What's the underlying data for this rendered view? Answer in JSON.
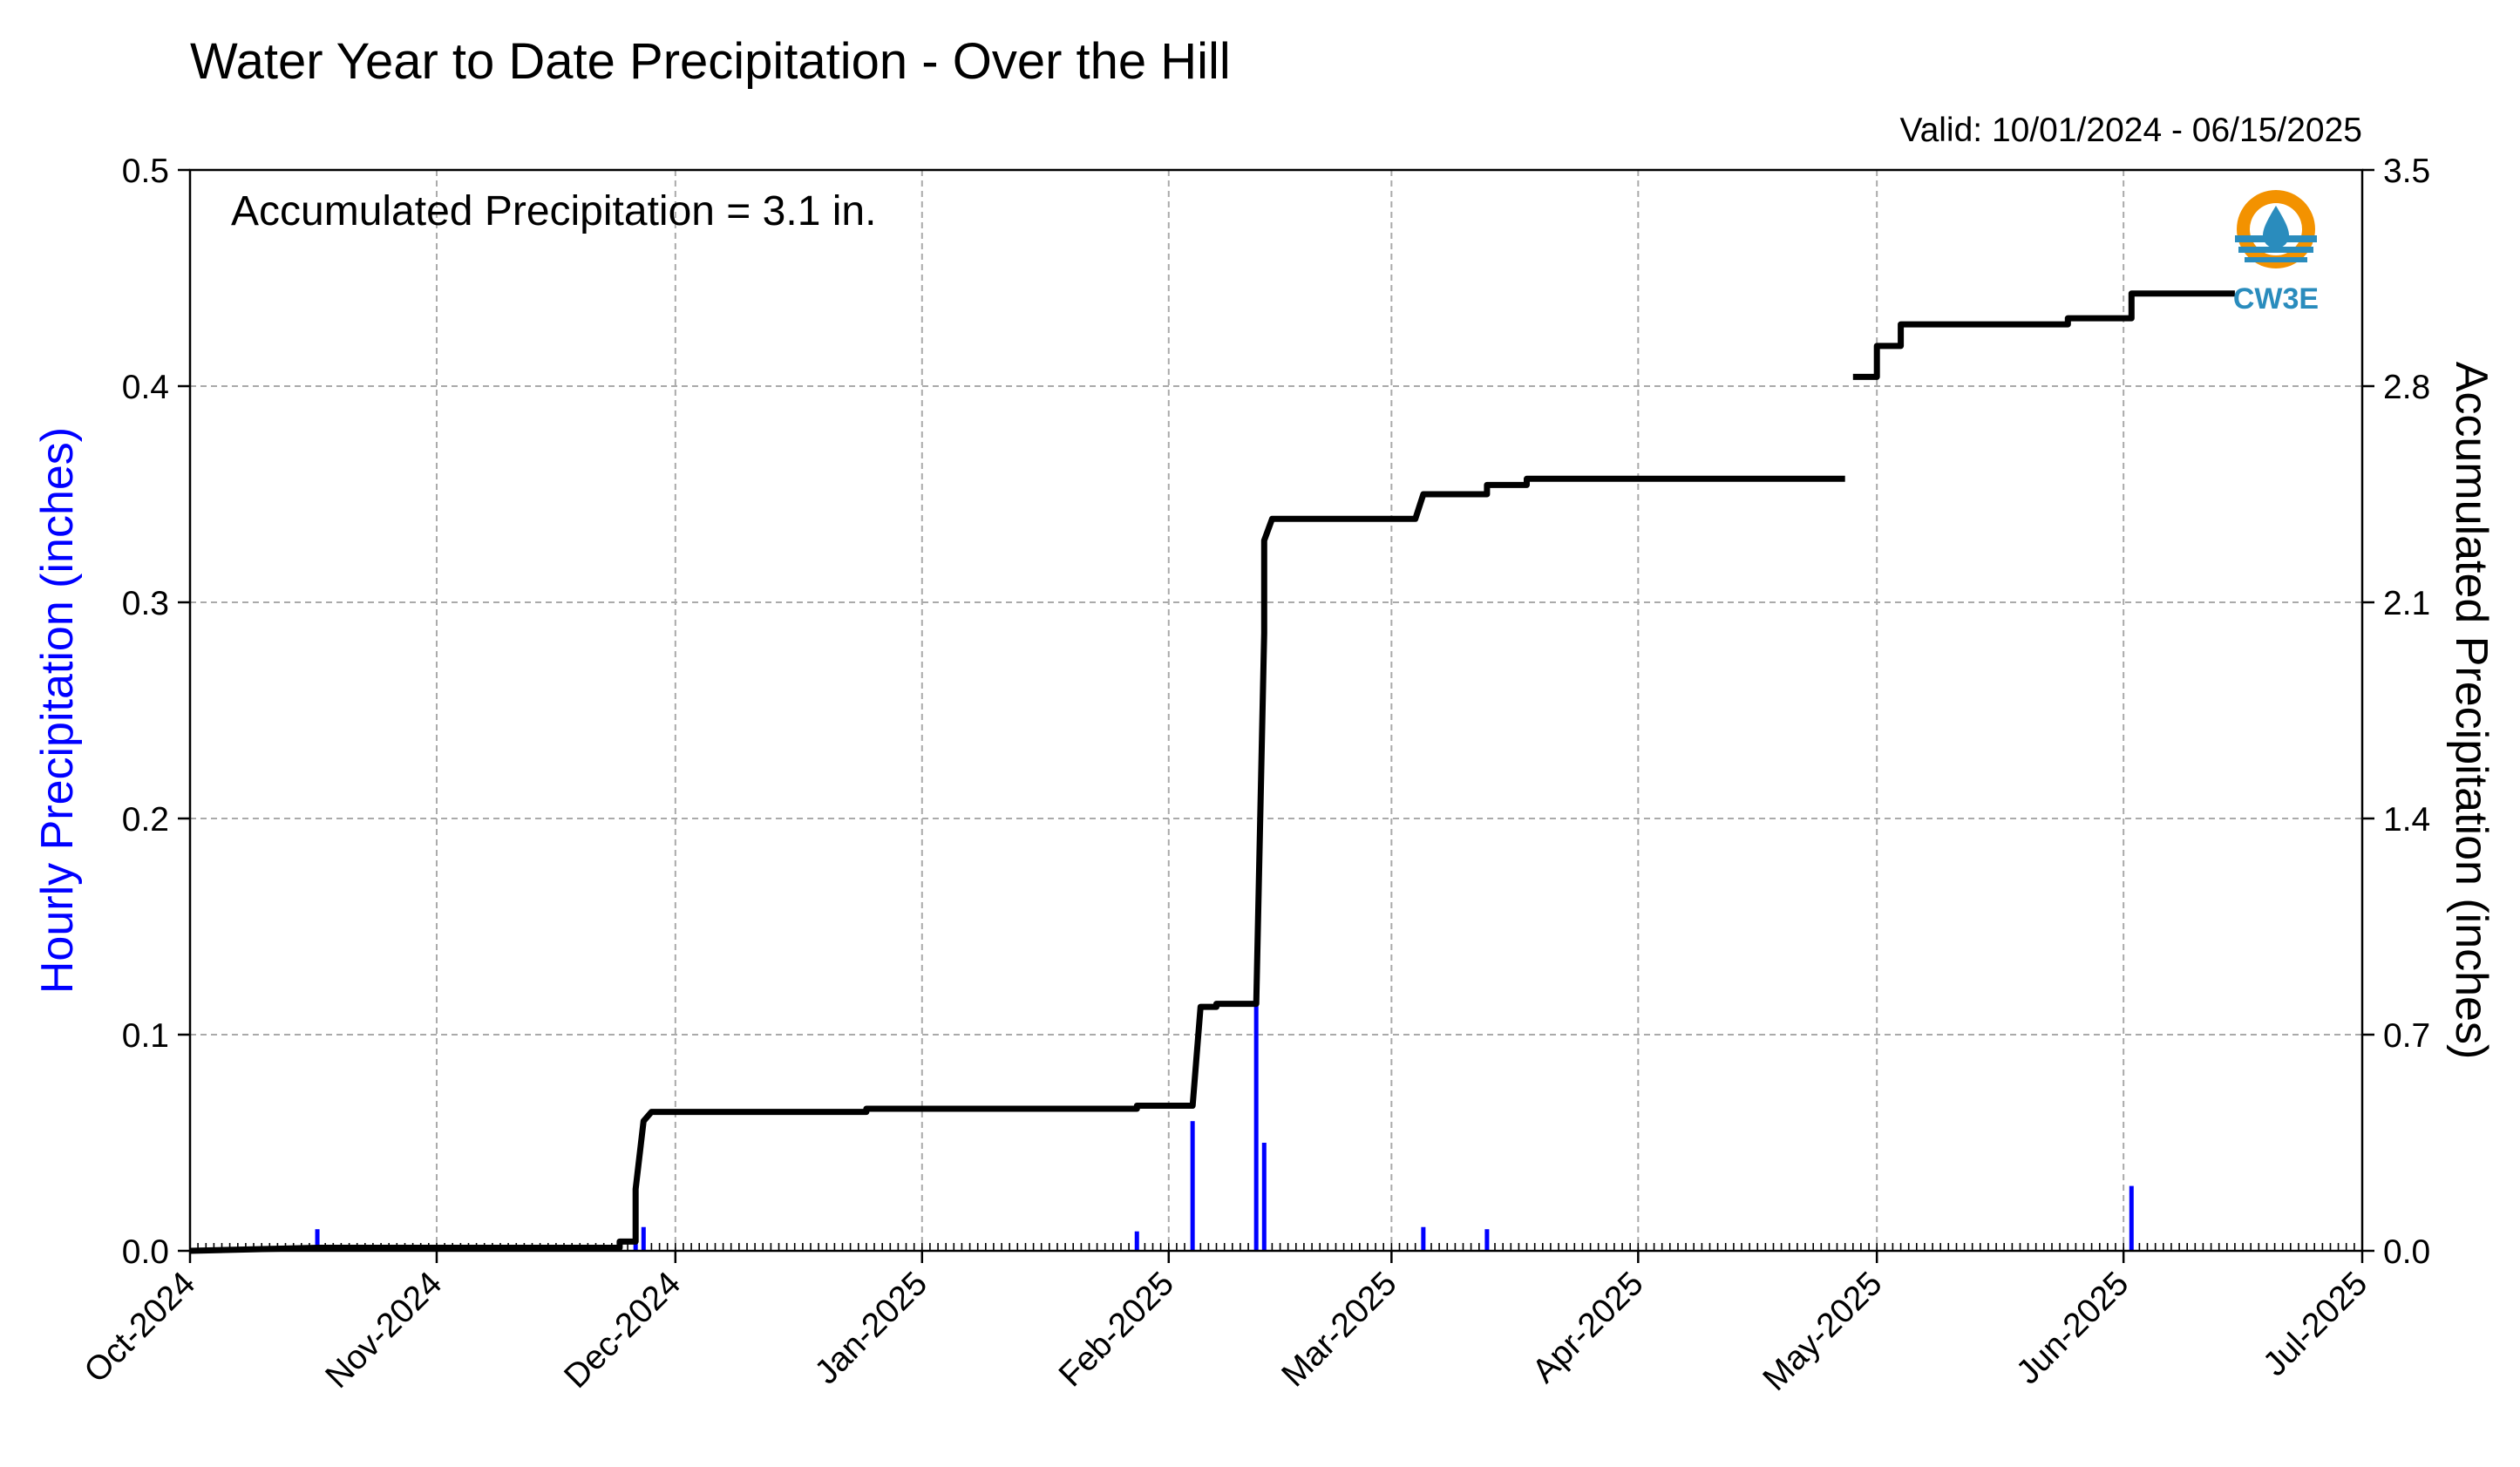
{
  "chart_data": {
    "type": "bar+line",
    "title": "Water Year to Date Precipitation - Over the Hill",
    "valid_text": "Valid: 10/01/2024 - 06/15/2025",
    "annotation": "Accumulated Precipitation = 3.1 in.",
    "logo_text": "CW3E",
    "ylabel_left": "Hourly Precipitation (inches)",
    "ylabel_right": "Accumulated Precipitation (inches)",
    "x_range": [
      "2024-10-01",
      "2025-07-01"
    ],
    "x_ticks": [
      {
        "date": "2024-10-01",
        "label": "Oct-2024"
      },
      {
        "date": "2024-11-01",
        "label": "Nov-2024"
      },
      {
        "date": "2024-12-01",
        "label": "Dec-2024"
      },
      {
        "date": "2025-01-01",
        "label": "Jan-2025"
      },
      {
        "date": "2025-02-01",
        "label": "Feb-2025"
      },
      {
        "date": "2025-03-01",
        "label": "Mar-2025"
      },
      {
        "date": "2025-04-01",
        "label": "Apr-2025"
      },
      {
        "date": "2025-05-01",
        "label": "May-2025"
      },
      {
        "date": "2025-06-01",
        "label": "Jun-2025"
      },
      {
        "date": "2025-07-01",
        "label": "Jul-2025"
      }
    ],
    "ylim_left": [
      0,
      0.5
    ],
    "yticks_left": [
      "0.0",
      "0.1",
      "0.2",
      "0.3",
      "0.4",
      "0.5"
    ],
    "ylim_right": [
      0,
      3.5
    ],
    "yticks_right": [
      "0.0",
      "0.7",
      "1.4",
      "2.1",
      "2.8",
      "3.5"
    ],
    "grid": true,
    "colors": {
      "hourly": "#0000ff",
      "accumulated": "#000000",
      "grid": "#aaaaaa",
      "logo_orange": "#f39200",
      "logo_blue": "#2a8cbd"
    },
    "hourly": [
      {
        "date": "2024-10-17",
        "value": 0.01
      },
      {
        "date": "2024-11-26",
        "value": 0.02
      },
      {
        "date": "2024-11-27",
        "value": 0.011
      },
      {
        "date": "2025-01-28",
        "value": 0.009
      },
      {
        "date": "2025-02-04",
        "value": 0.06
      },
      {
        "date": "2025-02-12",
        "value": 0.115
      },
      {
        "date": "2025-02-13",
        "value": 0.05
      },
      {
        "date": "2025-03-05",
        "value": 0.011
      },
      {
        "date": "2025-03-13",
        "value": 0.01
      },
      {
        "date": "2025-06-02",
        "value": 0.03
      }
    ],
    "accumulated": [
      {
        "date": "2024-10-01",
        "value": 0.0
      },
      {
        "date": "2024-10-17",
        "value": 0.01
      },
      {
        "date": "2024-11-24",
        "value": 0.01
      },
      {
        "date": "2024-11-24",
        "value": 0.03
      },
      {
        "date": "2024-11-26",
        "value": 0.03
      },
      {
        "date": "2024-11-26",
        "value": 0.2
      },
      {
        "date": "2024-11-27",
        "value": 0.42
      },
      {
        "date": "2024-11-28",
        "value": 0.45
      },
      {
        "date": "2024-12-25",
        "value": 0.45
      },
      {
        "date": "2024-12-25",
        "value": 0.46
      },
      {
        "date": "2025-01-28",
        "value": 0.46
      },
      {
        "date": "2025-01-28",
        "value": 0.47
      },
      {
        "date": "2025-02-04",
        "value": 0.47
      },
      {
        "date": "2025-02-05",
        "value": 0.79
      },
      {
        "date": "2025-02-07",
        "value": 0.79
      },
      {
        "date": "2025-02-07",
        "value": 0.8
      },
      {
        "date": "2025-02-12",
        "value": 0.8
      },
      {
        "date": "2025-02-13",
        "value": 2.0
      },
      {
        "date": "2025-02-13",
        "value": 2.3
      },
      {
        "date": "2025-02-14",
        "value": 2.37
      },
      {
        "date": "2025-03-04",
        "value": 2.37
      },
      {
        "date": "2025-03-05",
        "value": 2.45
      },
      {
        "date": "2025-03-13",
        "value": 2.45
      },
      {
        "date": "2025-03-13",
        "value": 2.48
      },
      {
        "date": "2025-03-18",
        "value": 2.48
      },
      {
        "date": "2025-03-18",
        "value": 2.5
      },
      {
        "date": "2025-04-27",
        "value": 2.5
      },
      {
        "date": "2025-04-27",
        "value": null
      },
      {
        "date": "2025-04-28",
        "value": 2.83
      },
      {
        "date": "2025-05-01",
        "value": 2.83
      },
      {
        "date": "2025-05-01",
        "value": 2.86
      },
      {
        "date": "2025-05-01",
        "value": 2.93
      },
      {
        "date": "2025-05-04",
        "value": 2.93
      },
      {
        "date": "2025-05-04",
        "value": 3.0
      },
      {
        "date": "2025-05-25",
        "value": 3.0
      },
      {
        "date": "2025-05-25",
        "value": 3.02
      },
      {
        "date": "2025-06-02",
        "value": 3.02
      },
      {
        "date": "2025-06-02",
        "value": 3.1
      },
      {
        "date": "2025-06-15",
        "value": 3.1
      }
    ]
  }
}
